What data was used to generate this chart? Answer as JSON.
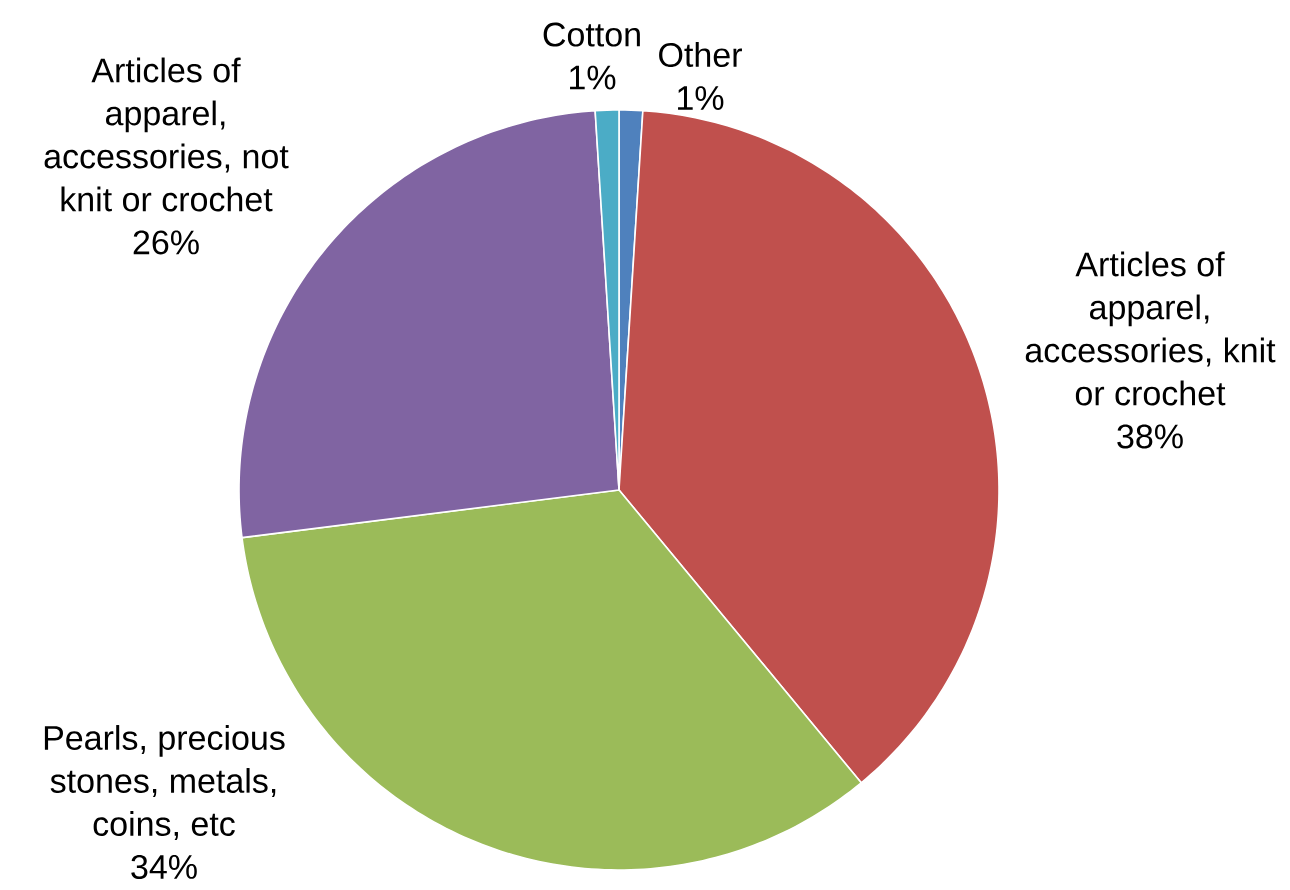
{
  "chart_data": {
    "type": "pie",
    "categories": [
      "Other",
      "Articles of apparel, accessories, knit or crochet",
      "Pearls, precious stones, metals, coins, etc",
      "Articles of apparel, accessories, not knit or crochet",
      "Cotton"
    ],
    "values": [
      1,
      38,
      34,
      26,
      1
    ],
    "colors": [
      "#4f81bd",
      "#c0504d",
      "#9bbb59",
      "#8064a2",
      "#4bacc6"
    ],
    "value_labels": [
      "1%",
      "38%",
      "34%",
      "26%",
      "1%"
    ]
  }
}
